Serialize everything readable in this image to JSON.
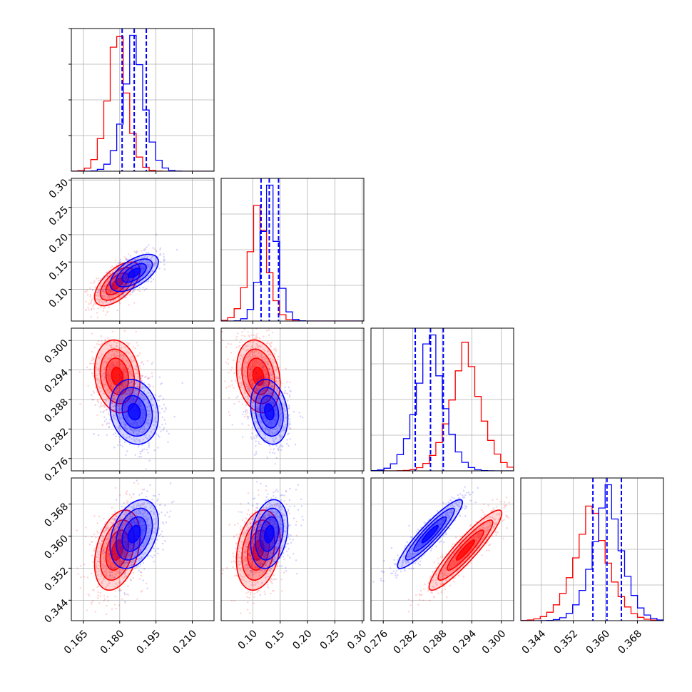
{
  "chart_data": {
    "type": "corner",
    "grid": true,
    "series": [
      {
        "name": "",
        "color": "#ff0000",
        "mean": [
          0.179,
          0.11,
          0.2927,
          0.3565
        ],
        "std": [
          0.0047,
          0.02,
          0.0037,
          0.005
        ],
        "corr": [
          [
            1.0,
            0.6,
            -0.15,
            0.35
          ],
          [
            0.6,
            1.0,
            -0.2,
            0.25
          ],
          [
            -0.15,
            -0.2,
            1.0,
            0.92
          ],
          [
            0.35,
            0.25,
            0.92,
            1.0
          ]
        ]
      },
      {
        "name": "",
        "color": "#0000ff",
        "mean": [
          0.186,
          0.13,
          0.2855,
          0.3605
        ],
        "std": [
          0.005,
          0.017,
          0.0033,
          0.0043
        ],
        "corr": [
          [
            1.0,
            0.6,
            -0.15,
            0.35
          ],
          [
            0.6,
            1.0,
            -0.2,
            0.25
          ],
          [
            -0.15,
            -0.2,
            1.0,
            0.92
          ],
          [
            0.35,
            0.25,
            0.92,
            1.0
          ]
        ]
      }
    ],
    "quantile_lines": {
      "color": "#0000ff",
      "style": "dashed",
      "values": [
        [
          0.181,
          0.186,
          0.191
        ],
        [
          0.115,
          0.13,
          0.147
        ],
        [
          0.2825,
          0.2856,
          0.2882
        ],
        [
          0.3569,
          0.3604,
          0.364
        ]
      ]
    },
    "axes": [
      {
        "range": [
          0.16,
          0.219
        ],
        "ticks": [
          0.165,
          0.18,
          0.195,
          0.21
        ],
        "tick_labels": [
          "0.165",
          "0.180",
          "0.195",
          "0.210"
        ]
      },
      {
        "range": [
          0.042,
          0.303
        ],
        "ticks": [
          0.1,
          0.15,
          0.2,
          0.25,
          0.3
        ],
        "tick_labels": [
          "0.10",
          "0.15",
          "0.20",
          "0.25",
          "0.30"
        ]
      },
      {
        "range": [
          0.2735,
          0.3025
        ],
        "ticks": [
          0.276,
          0.282,
          0.288,
          0.294,
          0.3
        ],
        "tick_labels": [
          "0.276",
          "0.282",
          "0.288",
          "0.294",
          "0.300"
        ]
      },
      {
        "range": [
          0.3389,
          0.3745
        ],
        "ticks": [
          0.344,
          0.352,
          0.36,
          0.368
        ],
        "tick_labels": [
          "0.344",
          "0.352",
          "0.360",
          "0.368"
        ]
      }
    ],
    "diagonal_x_labels": [
      [
        "0.165",
        "0.180",
        "0.195",
        "0.210"
      ],
      [
        "0.10",
        "0.15",
        "0.20",
        "0.25",
        "0.30"
      ],
      [
        "0.276",
        "0.282",
        "0.288",
        "0.294",
        "0.300"
      ],
      [
        "0.344",
        "0.352",
        "0.360",
        "0.368"
      ]
    ],
    "row_y_labels": [
      [],
      [
        "0.10",
        "0.15",
        "0.20",
        "0.25",
        "0.30"
      ],
      [
        "0.276",
        "0.282",
        "0.288",
        "0.294",
        "0.300"
      ],
      [
        "0.344",
        "0.352",
        "0.360",
        "0.368"
      ]
    ]
  }
}
